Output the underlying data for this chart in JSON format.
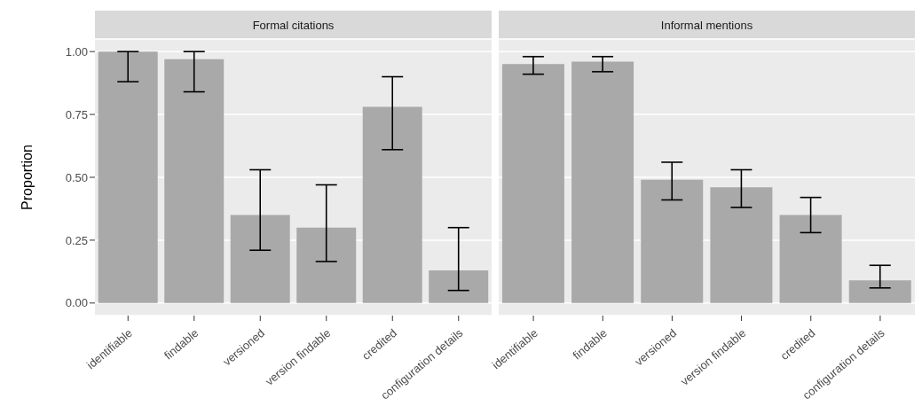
{
  "chart_data": [
    {
      "type": "bar",
      "title": "Formal citations",
      "ylabel": "Proportion",
      "categories": [
        "identifiable",
        "findable",
        "versioned",
        "version findable",
        "credited",
        "configuration details"
      ],
      "values": [
        1.0,
        0.97,
        0.35,
        0.3,
        0.78,
        0.13
      ],
      "errors": [
        [
          0.88,
          1.0
        ],
        [
          0.84,
          1.0
        ],
        [
          0.21,
          0.53
        ],
        [
          0.165,
          0.47
        ],
        [
          0.61,
          0.9
        ],
        [
          0.05,
          0.3
        ]
      ],
      "color": "#a9a9a9",
      "ylim": [
        -0.05,
        1.05
      ],
      "yticks": [
        {
          "value": 0,
          "label": "0.00"
        },
        {
          "value": 0.25,
          "label": "0.25"
        },
        {
          "value": 0.5,
          "label": "0.50"
        },
        {
          "value": 0.75,
          "label": "0.75"
        },
        {
          "value": 1,
          "label": "1.00"
        }
      ],
      "grid": "y",
      "legend": false
    },
    {
      "type": "bar",
      "title": "Informal mentions",
      "categories": [
        "identifiable",
        "findable",
        "versioned",
        "version findable",
        "credited",
        "configuration details"
      ],
      "values": [
        0.95,
        0.96,
        0.49,
        0.46,
        0.35,
        0.09
      ],
      "errors": [
        [
          0.91,
          0.98
        ],
        [
          0.92,
          0.98
        ],
        [
          0.41,
          0.56
        ],
        [
          0.38,
          0.53
        ],
        [
          0.28,
          0.42
        ],
        [
          0.06,
          0.15
        ]
      ],
      "color": "#a9a9a9",
      "ylim": [
        -0.05,
        1.05
      ],
      "yticks": [
        0,
        0.25,
        0.5,
        0.75,
        1
      ],
      "grid": "y",
      "tick_labels": "x",
      "legend": false
    }
  ]
}
